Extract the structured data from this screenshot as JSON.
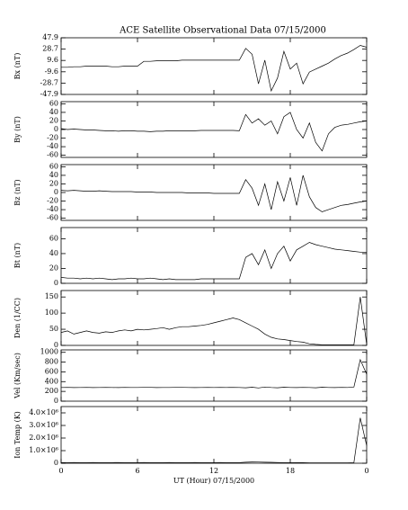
{
  "chart_data": [
    {
      "type": "line",
      "title": "ACE Satellite Observational Data  07/15/2000",
      "ylabel": "Bx (nT)",
      "x": [
        0,
        0.5,
        1,
        1.5,
        2,
        2.5,
        3,
        3.5,
        4,
        4.5,
        5,
        5.5,
        6,
        6.5,
        7,
        7.5,
        8,
        8.5,
        9,
        9.5,
        10,
        10.5,
        11,
        11.5,
        12,
        12.5,
        13,
        13.5,
        14,
        14.5,
        15,
        15.5,
        16,
        16.5,
        17,
        17.5,
        18,
        18.5,
        19,
        19.5,
        20,
        20.5,
        21,
        21.5,
        22,
        22.5,
        23,
        23.5,
        24
      ],
      "values": [
        -2,
        -2,
        -1,
        -1,
        0,
        0,
        0,
        0,
        -1,
        -1,
        0,
        0,
        0,
        8,
        8,
        9,
        9,
        9,
        9,
        10,
        10,
        10,
        10,
        10,
        10,
        10,
        10,
        10,
        10,
        30,
        20,
        -30,
        10,
        -42,
        -20,
        25,
        -5,
        5,
        -30,
        -10,
        -5,
        0,
        5,
        12,
        18,
        22,
        28,
        35,
        32
      ],
      "ylim": [
        -47.9,
        47.9
      ],
      "yticks": [
        -47.9,
        -28.7,
        -9.6,
        9.6,
        28.7,
        47.9
      ],
      "xlim": [
        0,
        24
      ],
      "xticks": [
        0,
        6,
        12,
        18,
        {
          "value": 24,
          "label": "0"
        }
      ],
      "color": "#000000"
    },
    {
      "type": "line",
      "ylabel": "By (nT)",
      "x": [
        0,
        0.5,
        1,
        1.5,
        2,
        2.5,
        3,
        3.5,
        4,
        4.5,
        5,
        5.5,
        6,
        6.5,
        7,
        7.5,
        8,
        8.5,
        9,
        9.5,
        10,
        10.5,
        11,
        11.5,
        12,
        12.5,
        13,
        13.5,
        14,
        14.5,
        15,
        15.5,
        16,
        16.5,
        17,
        17.5,
        18,
        18.5,
        19,
        19.5,
        20,
        20.5,
        21,
        21.5,
        22,
        22.5,
        23,
        23.5,
        24
      ],
      "values": [
        2,
        0,
        1,
        0,
        -1,
        -1,
        -2,
        -3,
        -3,
        -4,
        -3,
        -3,
        -4,
        -4,
        -5,
        -4,
        -4,
        -3,
        -3,
        -3,
        -3,
        -3,
        -2,
        -2,
        -2,
        -2,
        -2,
        -2,
        -3,
        35,
        15,
        25,
        10,
        20,
        -10,
        30,
        40,
        0,
        -20,
        15,
        -30,
        -50,
        -10,
        5,
        10,
        12,
        15,
        18,
        20
      ],
      "ylim": [
        -65,
        65
      ],
      "yticks": [
        -60,
        -40,
        -20,
        0,
        20,
        40,
        60
      ],
      "xlim": [
        0,
        24
      ],
      "xticks": [
        0,
        6,
        12,
        18,
        {
          "value": 24,
          "label": "0"
        }
      ],
      "color": "#000000"
    },
    {
      "type": "line",
      "ylabel": "Bz (nT)",
      "x": [
        0,
        0.5,
        1,
        1.5,
        2,
        2.5,
        3,
        3.5,
        4,
        4.5,
        5,
        5.5,
        6,
        6.5,
        7,
        7.5,
        8,
        8.5,
        9,
        9.5,
        10,
        10.5,
        11,
        11.5,
        12,
        12.5,
        13,
        13.5,
        14,
        14.5,
        15,
        15.5,
        16,
        16.5,
        17,
        17.5,
        18,
        18.5,
        19,
        19.5,
        20,
        20.5,
        21,
        21.5,
        22,
        22.5,
        23,
        23.5,
        24
      ],
      "values": [
        5,
        4,
        5,
        4,
        3,
        3,
        4,
        3,
        2,
        2,
        2,
        2,
        1,
        1,
        1,
        0,
        0,
        0,
        0,
        0,
        -1,
        -1,
        -1,
        -1,
        -2,
        -2,
        -2,
        -2,
        -2,
        30,
        10,
        -30,
        20,
        -40,
        25,
        -20,
        35,
        -30,
        40,
        -10,
        -35,
        -45,
        -40,
        -35,
        -30,
        -28,
        -25,
        -22,
        -20
      ],
      "ylim": [
        -65,
        65
      ],
      "yticks": [
        -60,
        -40,
        -20,
        0,
        20,
        40,
        60
      ],
      "xlim": [
        0,
        24
      ],
      "xticks": [
        0,
        6,
        12,
        18,
        {
          "value": 24,
          "label": "0"
        }
      ],
      "color": "#000000"
    },
    {
      "type": "line",
      "ylabel": "Bt (nT)",
      "x": [
        0,
        0.5,
        1,
        1.5,
        2,
        2.5,
        3,
        3.5,
        4,
        4.5,
        5,
        5.5,
        6,
        6.5,
        7,
        7.5,
        8,
        8.5,
        9,
        9.5,
        10,
        10.5,
        11,
        11.5,
        12,
        12.5,
        13,
        13.5,
        14,
        14.5,
        15,
        15.5,
        16,
        16.5,
        17,
        17.5,
        18,
        18.5,
        19,
        19.5,
        20,
        20.5,
        21,
        21.5,
        22,
        22.5,
        23,
        23.5,
        24
      ],
      "values": [
        8,
        7,
        7,
        6,
        7,
        6,
        7,
        6,
        5,
        6,
        6,
        7,
        6,
        6,
        7,
        6,
        5,
        6,
        5,
        5,
        5,
        5,
        6,
        6,
        6,
        6,
        6,
        6,
        6,
        35,
        40,
        25,
        45,
        20,
        40,
        50,
        30,
        45,
        50,
        55,
        52,
        50,
        48,
        46,
        45,
        44,
        43,
        42,
        42
      ],
      "ylim": [
        0,
        75
      ],
      "yticks": [
        0,
        20,
        40,
        60
      ],
      "xlim": [
        0,
        24
      ],
      "xticks": [
        0,
        6,
        12,
        18,
        {
          "value": 24,
          "label": "0"
        }
      ],
      "color": "#000000"
    },
    {
      "type": "line",
      "ylabel": "Den (1/CC)",
      "x": [
        0,
        0.5,
        1,
        1.5,
        2,
        2.5,
        3,
        3.5,
        4,
        4.5,
        5,
        5.5,
        6,
        6.5,
        7,
        7.5,
        8,
        8.5,
        9,
        9.5,
        10,
        10.5,
        11,
        11.5,
        12,
        12.5,
        13,
        13.5,
        14,
        14.5,
        15,
        15.5,
        16,
        16.5,
        17,
        17.5,
        18,
        18.5,
        19,
        19.5,
        20,
        20.5,
        21,
        21.5,
        22,
        22.5,
        23,
        23.5,
        24
      ],
      "values": [
        40,
        45,
        35,
        40,
        45,
        40,
        38,
        42,
        40,
        45,
        48,
        45,
        50,
        48,
        50,
        52,
        55,
        50,
        55,
        58,
        58,
        60,
        62,
        65,
        70,
        75,
        80,
        85,
        80,
        70,
        60,
        50,
        35,
        25,
        20,
        18,
        15,
        12,
        10,
        5,
        3,
        2,
        2,
        2,
        2,
        2,
        2,
        150,
        3
      ],
      "ylim": [
        0,
        170
      ],
      "yticks": [
        0,
        50,
        100,
        150
      ],
      "xlim": [
        0,
        24
      ],
      "xticks": [
        0,
        6,
        12,
        18,
        {
          "value": 24,
          "label": "0"
        }
      ],
      "color": "#000000"
    },
    {
      "type": "line",
      "ylabel": "Vel (Km/sec)",
      "x": [
        0,
        0.5,
        1,
        1.5,
        2,
        2.5,
        3,
        3.5,
        4,
        4.5,
        5,
        5.5,
        6,
        6.5,
        7,
        7.5,
        8,
        8.5,
        9,
        9.5,
        10,
        10.5,
        11,
        11.5,
        12,
        12.5,
        13,
        13.5,
        14,
        14.5,
        15,
        15.5,
        16,
        16.5,
        17,
        17.5,
        18,
        18.5,
        19,
        19.5,
        20,
        20.5,
        21,
        21.5,
        22,
        22.5,
        23,
        23.5,
        24
      ],
      "values": [
        280,
        282,
        278,
        280,
        281,
        279,
        280,
        282,
        280,
        279,
        281,
        280,
        280,
        282,
        281,
        279,
        280,
        280,
        281,
        282,
        280,
        279,
        280,
        281,
        280,
        282,
        280,
        281,
        280,
        275,
        285,
        270,
        290,
        280,
        275,
        285,
        280,
        278,
        282,
        280,
        275,
        285,
        280,
        278,
        282,
        280,
        290,
        850,
        550
      ],
      "ylim": [
        0,
        1050
      ],
      "yticks": [
        0,
        200,
        400,
        600,
        800,
        1000
      ],
      "xlim": [
        0,
        24
      ],
      "xticks": [
        0,
        6,
        12,
        18,
        {
          "value": 24,
          "label": "0"
        }
      ],
      "color": "#000000"
    },
    {
      "type": "line",
      "ylabel": "Ion Temp (K)",
      "xlabel": "UT (Hour)  07/15/2000",
      "x": [
        0,
        0.5,
        1,
        1.5,
        2,
        2.5,
        3,
        3.5,
        4,
        4.5,
        5,
        5.5,
        6,
        6.5,
        7,
        7.5,
        8,
        8.5,
        9,
        9.5,
        10,
        10.5,
        11,
        11.5,
        12,
        12.5,
        13,
        13.5,
        14,
        14.5,
        15,
        15.5,
        16,
        16.5,
        17,
        17.5,
        18,
        18.5,
        19,
        19.5,
        20,
        20.5,
        21,
        21.5,
        22,
        22.5,
        23,
        23.5,
        24
      ],
      "values": [
        50000,
        50000,
        60000,
        50000,
        50000,
        60000,
        50000,
        50000,
        50000,
        60000,
        50000,
        50000,
        50000,
        60000,
        50000,
        50000,
        50000,
        60000,
        50000,
        50000,
        50000,
        60000,
        50000,
        50000,
        50000,
        60000,
        50000,
        50000,
        50000,
        80000,
        100000,
        90000,
        80000,
        70000,
        60000,
        50000,
        50000,
        40000,
        40000,
        30000,
        30000,
        30000,
        30000,
        30000,
        30000,
        30000,
        50000,
        3600000,
        1400000
      ],
      "ylim": [
        0,
        4500000
      ],
      "yticks": [
        0,
        {
          "value": 1000000,
          "label": "1.0×10⁶"
        },
        {
          "value": 2000000,
          "label": "2.0×10⁶"
        },
        {
          "value": 3000000,
          "label": "3.0×10⁶"
        },
        {
          "value": 4000000,
          "label": "4.0×10⁶"
        }
      ],
      "xlim": [
        0,
        24
      ],
      "xticks": [
        0,
        6,
        12,
        18,
        {
          "value": 24,
          "label": "0"
        }
      ],
      "color": "#000000"
    }
  ]
}
